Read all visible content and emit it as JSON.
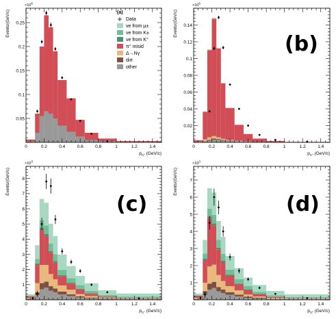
{
  "chart_data": [
    {
      "type": "bar",
      "stacked": true,
      "panel_label": "(a)",
      "label_style": "small",
      "exponent": "6",
      "ylabel": "Events/(GeV/c)",
      "xlabel": "p",
      "xlabel_sub": "π°",
      "xlim": [
        0,
        1.5
      ],
      "ylim": [
        0,
        0.28
      ],
      "xticks": [
        "0",
        "0.2",
        "0.4",
        "0.6",
        "0.8",
        "1",
        "1.2",
        "1.4"
      ],
      "yticks": [
        "0.05",
        "0.1",
        "0.15",
        "0.2",
        "0.25"
      ],
      "bin_edges": [
        0.0,
        0.1,
        0.15,
        0.2,
        0.25,
        0.3,
        0.35,
        0.45,
        0.55,
        0.65,
        0.8,
        1.0,
        1.5
      ],
      "series": [
        {
          "name": "other",
          "color": "#999999",
          "values": [
            0.002,
            0.02,
            0.055,
            0.065,
            0.06,
            0.05,
            0.035,
            0.022,
            0.012,
            0.005,
            0.002,
            0.0008
          ]
        },
        {
          "name": "dirt",
          "color": "#7f4f3f",
          "values": [
            0,
            0,
            0,
            0,
            0,
            0,
            0,
            0,
            0,
            0,
            0,
            0
          ]
        },
        {
          "name": "Δ→Nγ",
          "color": "#e8b87c",
          "values": [
            0,
            0,
            0,
            0,
            0,
            0,
            0,
            0,
            0,
            0,
            0,
            0
          ]
        },
        {
          "name": "π° misid",
          "color": "#d24e56",
          "values": [
            0.004,
            0.04,
            0.145,
            0.2,
            0.18,
            0.14,
            0.095,
            0.07,
            0.035,
            0.015,
            0.006,
            0.002
          ]
        },
        {
          "name": "νe from K°",
          "color": "#4e8e73",
          "values": [
            0,
            0,
            0,
            0,
            0,
            0,
            0,
            0,
            0,
            0,
            0,
            0
          ]
        },
        {
          "name": "νe from K±",
          "color": "#6fbf99",
          "values": [
            0,
            0,
            0,
            0,
            0,
            0,
            0,
            0,
            0,
            0,
            0,
            0
          ]
        },
        {
          "name": "νe from μ±",
          "color": "#a8d8c2",
          "values": [
            0,
            0,
            0,
            0,
            0,
            0,
            0,
            0,
            0,
            0,
            0,
            0
          ]
        }
      ],
      "data_points": {
        "name": "Data",
        "x": [
          0.125,
          0.175,
          0.225,
          0.275,
          0.325,
          0.4,
          0.5,
          0.6,
          0.725,
          0.9
        ],
        "y": [
          0.065,
          0.21,
          0.27,
          0.245,
          0.195,
          0.135,
          0.09,
          0.045,
          0.018,
          0.002
        ],
        "yerr": [
          0.003,
          0.004,
          0.005,
          0.005,
          0.004,
          0.003,
          0.002,
          0.002,
          0.001,
          0.0005
        ]
      },
      "legend": {
        "title": "(a)",
        "items": [
          {
            "label": "Data",
            "kind": "point"
          },
          {
            "label": "νe from μ±",
            "kind": "box",
            "color": "#a8d8c2"
          },
          {
            "label": "νe from K±",
            "kind": "box",
            "color": "#6fbf99"
          },
          {
            "label": "νe from K°",
            "kind": "box",
            "color": "#4e8e73"
          },
          {
            "label": "π° misid",
            "kind": "box",
            "color": "#d24e56"
          },
          {
            "label": "Δ→Nγ",
            "kind": "box",
            "color": "#e8b87c"
          },
          {
            "label": "dirt",
            "kind": "box",
            "color": "#7f4f3f"
          },
          {
            "label": "other",
            "kind": "box",
            "color": "#999999"
          }
        ]
      }
    },
    {
      "type": "bar",
      "stacked": true,
      "panel_label": "(b)",
      "label_style": "large",
      "exponent": "6",
      "ylabel": "Events/(GeV/c)",
      "xlabel": "p",
      "xlabel_sub": "π°",
      "xlim": [
        0,
        1.5
      ],
      "ylim": [
        0,
        0.16
      ],
      "xticks": [
        "0",
        "0.2",
        "0.4",
        "0.6",
        "0.8",
        "1",
        "1.2",
        "1.4"
      ],
      "yticks": [
        "0.02",
        "0.04",
        "0.06",
        "0.08",
        "0.1",
        "0.12",
        "0.14"
      ],
      "bin_edges": [
        0.0,
        0.1,
        0.15,
        0.2,
        0.25,
        0.3,
        0.35,
        0.45,
        0.55,
        0.65,
        0.8,
        1.0,
        1.5
      ],
      "series": [
        {
          "name": "other",
          "color": "#999999",
          "values": [
            0.0003,
            0.001,
            0.002,
            0.003,
            0.003,
            0.002,
            0.0015,
            0.001,
            0.0005,
            0.0003,
            0.0001,
            5e-05
          ]
        },
        {
          "name": "dirt",
          "color": "#7f4f3f",
          "values": [
            0.0001,
            0.0005,
            0.001,
            0.0015,
            0.001,
            0.0008,
            0.0005,
            0.0003,
            0.0002,
            0.0001,
            5e-05,
            2e-05
          ]
        },
        {
          "name": "Δ→Nγ",
          "color": "#e8b87c",
          "values": [
            0.0002,
            0.002,
            0.003,
            0.003,
            0.002,
            0.0015,
            0.001,
            0.0006,
            0.0003,
            0.0001,
            5e-05,
            2e-05
          ]
        },
        {
          "name": "π° misid",
          "color": "#d24e56",
          "values": [
            0.002,
            0.033,
            0.104,
            0.14,
            0.106,
            0.066,
            0.038,
            0.019,
            0.009,
            0.004,
            0.0015,
            0.0005
          ]
        },
        {
          "name": "νe from K°",
          "color": "#4e8e73",
          "values": [
            0,
            0,
            0,
            0,
            0,
            0,
            0,
            0,
            0,
            0,
            0,
            0
          ]
        },
        {
          "name": "νe from K±",
          "color": "#6fbf99",
          "values": [
            0,
            0,
            0,
            0,
            0,
            0,
            0,
            0,
            0,
            0,
            0,
            0
          ]
        },
        {
          "name": "νe from μ±",
          "color": "#a8d8c2",
          "values": [
            0.0001,
            0.0005,
            0.001,
            0.001,
            0.001,
            0.0008,
            0.0005,
            0.0003,
            0.0002,
            0.0001,
            5e-05,
            2e-05
          ]
        }
      ],
      "data_points": {
        "name": "Data",
        "x": [
          0.175,
          0.225,
          0.275,
          0.325,
          0.4,
          0.5,
          0.6,
          0.725,
          0.9,
          1.25
        ],
        "y": [
          0.037,
          0.112,
          0.149,
          0.113,
          0.069,
          0.04,
          0.02,
          0.009,
          0.003,
          0.0008
        ],
        "yerr": [
          0.001,
          0.002,
          0.002,
          0.002,
          0.001,
          0.001,
          0.001,
          0.0005,
          0.0003,
          0.0002
        ]
      }
    },
    {
      "type": "bar",
      "stacked": true,
      "panel_label": "(c)",
      "label_style": "large",
      "exponent": "3",
      "ylabel": "Events/(GeV/c)",
      "xlabel": "p",
      "xlabel_sub": "π°",
      "xlim": [
        0,
        1.5
      ],
      "ylim": [
        0,
        8.8
      ],
      "xticks": [
        "0",
        "0.2",
        "0.4",
        "0.6",
        "0.8",
        "1",
        "1.2",
        "1.4"
      ],
      "yticks": [
        "1",
        "2",
        "3",
        "4",
        "5",
        "6",
        "7",
        "8"
      ],
      "bin_edges": [
        0.0,
        0.1,
        0.15,
        0.2,
        0.25,
        0.3,
        0.35,
        0.45,
        0.55,
        0.65,
        0.8,
        1.0,
        1.5
      ],
      "series": [
        {
          "name": "other",
          "color": "#999999",
          "values": [
            0.05,
            0.3,
            0.7,
            0.8,
            0.6,
            0.5,
            0.35,
            0.25,
            0.15,
            0.1,
            0.07,
            0.05
          ]
        },
        {
          "name": "dirt",
          "color": "#7f4f3f",
          "values": [
            0.02,
            0.2,
            0.4,
            0.4,
            0.3,
            0.25,
            0.2,
            0.12,
            0.08,
            0.05,
            0.03,
            0.02
          ]
        },
        {
          "name": "Δ→Nγ",
          "color": "#e8b87c",
          "values": [
            0.05,
            0.6,
            1.2,
            1.1,
            0.8,
            0.6,
            0.4,
            0.3,
            0.15,
            0.1,
            0.05,
            0.03
          ]
        },
        {
          "name": "π° misid",
          "color": "#d24e56",
          "values": [
            0.1,
            1.2,
            2.3,
            1.9,
            1.4,
            1.1,
            0.6,
            0.4,
            0.3,
            0.15,
            0.05,
            0.02
          ]
        },
        {
          "name": "νe from K°",
          "color": "#4e8e73",
          "values": [
            0.02,
            0.1,
            0.15,
            0.15,
            0.12,
            0.1,
            0.08,
            0.06,
            0.05,
            0.04,
            0.03,
            0.02
          ]
        },
        {
          "name": "νe from K±",
          "color": "#6fbf99",
          "values": [
            0.03,
            0.3,
            0.5,
            0.55,
            0.5,
            0.45,
            0.35,
            0.3,
            0.25,
            0.15,
            0.1,
            0.08
          ]
        },
        {
          "name": "νe from μ±",
          "color": "#a8d8c2",
          "values": [
            0.1,
            0.9,
            1.4,
            1.5,
            1.3,
            1.2,
            1.0,
            0.8,
            0.6,
            0.5,
            0.3,
            0.2
          ]
        }
      ],
      "data_points": {
        "name": "Data",
        "x": [
          0.075,
          0.125,
          0.175,
          0.225,
          0.275,
          0.325,
          0.4,
          0.5,
          0.6,
          0.725,
          0.9,
          1.25
        ],
        "y": [
          0.1,
          0.4,
          5.0,
          7.8,
          7.5,
          5.3,
          3.2,
          2.5,
          1.9,
          1.0,
          0.5,
          0.1
        ],
        "yerr": [
          0.1,
          0.2,
          0.4,
          0.5,
          0.5,
          0.3,
          0.2,
          0.15,
          0.12,
          0.08,
          0.05,
          0.03
        ]
      }
    },
    {
      "type": "bar",
      "stacked": true,
      "panel_label": "(d)",
      "label_style": "large",
      "exponent": "3",
      "ylabel": "Events/(GeV/c)",
      "xlabel": "p",
      "xlabel_sub": "π°",
      "xlim": [
        0,
        1.5
      ],
      "ylim": [
        0,
        7.8
      ],
      "xticks": [
        "0",
        "0.2",
        "0.4",
        "0.6",
        "0.8",
        "1",
        "1.2",
        "1.4"
      ],
      "yticks": [
        "1",
        "2",
        "3",
        "4",
        "5",
        "6",
        "7"
      ],
      "bin_edges": [
        0.0,
        0.1,
        0.15,
        0.2,
        0.25,
        0.3,
        0.35,
        0.45,
        0.55,
        0.65,
        0.8,
        1.0,
        1.5
      ],
      "series": [
        {
          "name": "other",
          "color": "#999999",
          "values": [
            0.05,
            0.3,
            0.6,
            0.7,
            0.5,
            0.4,
            0.3,
            0.2,
            0.12,
            0.08,
            0.05,
            0.03
          ]
        },
        {
          "name": "dirt",
          "color": "#7f4f3f",
          "values": [
            0.02,
            0.2,
            0.35,
            0.35,
            0.25,
            0.2,
            0.15,
            0.1,
            0.07,
            0.04,
            0.02,
            0.02
          ]
        },
        {
          "name": "Δ→Nγ",
          "color": "#e8b87c",
          "values": [
            0.05,
            0.5,
            1.0,
            1.0,
            0.7,
            0.5,
            0.35,
            0.25,
            0.12,
            0.08,
            0.05,
            0.02
          ]
        },
        {
          "name": "π° misid",
          "color": "#d24e56",
          "values": [
            0.1,
            1.3,
            2.8,
            2.3,
            1.5,
            1.1,
            0.6,
            0.35,
            0.25,
            0.12,
            0.05,
            0.02
          ]
        },
        {
          "name": "νe from K°",
          "color": "#4e8e73",
          "values": [
            0.02,
            0.1,
            0.12,
            0.12,
            0.1,
            0.08,
            0.06,
            0.05,
            0.04,
            0.03,
            0.02,
            0.02
          ]
        },
        {
          "name": "νe from K±",
          "color": "#6fbf99",
          "values": [
            0.03,
            0.3,
            0.45,
            0.5,
            0.45,
            0.4,
            0.3,
            0.25,
            0.2,
            0.12,
            0.08,
            0.06
          ]
        },
        {
          "name": "νe from μ±",
          "color": "#a8d8c2",
          "values": [
            0.1,
            0.8,
            1.2,
            1.3,
            1.1,
            1.0,
            0.8,
            0.65,
            0.5,
            0.4,
            0.25,
            0.15
          ]
        }
      ],
      "data_points": {
        "name": "Data",
        "x": [
          0.075,
          0.125,
          0.175,
          0.225,
          0.275,
          0.325,
          0.4,
          0.5,
          0.6,
          0.725,
          0.9,
          1.25
        ],
        "y": [
          0.1,
          0.3,
          4.5,
          6.0,
          5.4,
          4.0,
          2.5,
          1.7,
          1.2,
          0.7,
          0.35,
          0.1
        ],
        "yerr": [
          0.1,
          0.2,
          0.4,
          0.5,
          0.4,
          0.3,
          0.2,
          0.15,
          0.1,
          0.07,
          0.05,
          0.03
        ]
      }
    }
  ]
}
